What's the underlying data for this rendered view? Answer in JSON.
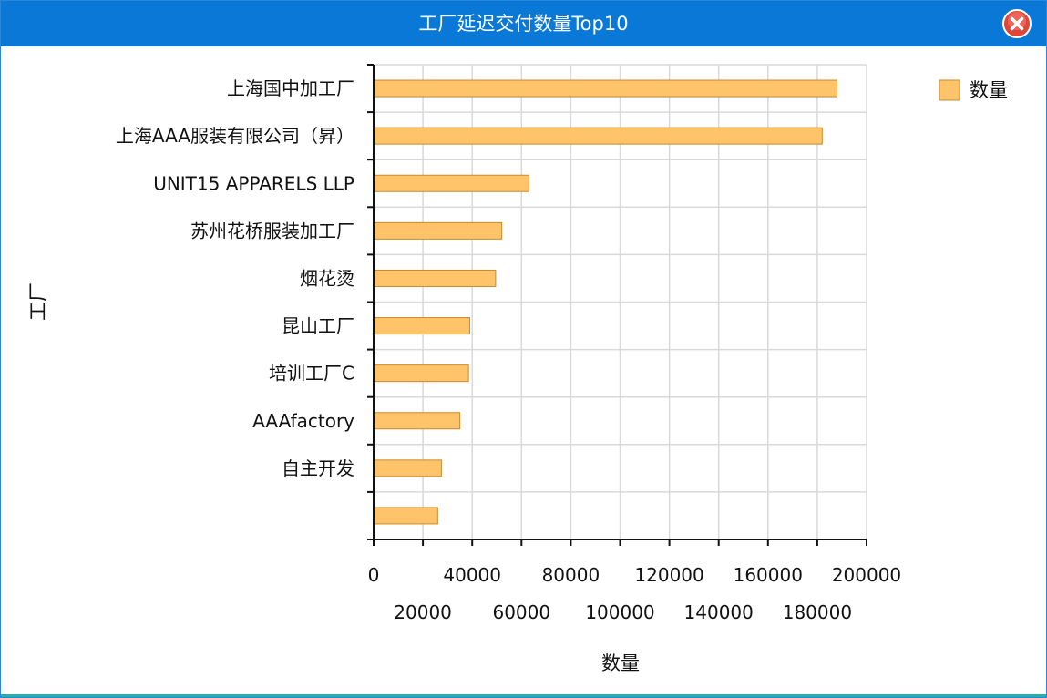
{
  "window": {
    "title": "工厂延迟交付数量Top10"
  },
  "icons": {
    "close": "close-icon"
  },
  "colors": {
    "titlebar": "#0a78d7",
    "bar_fill": "#ffc469",
    "bar_stroke": "#c98a2a",
    "grid": "#d9d9d9",
    "close_red": "#e0453a"
  },
  "chart_data": {
    "type": "bar",
    "orientation": "horizontal",
    "xlabel": "数量",
    "ylabel": "工厂",
    "xlim": [
      0,
      200000
    ],
    "x_ticks": [
      0,
      20000,
      40000,
      60000,
      80000,
      100000,
      120000,
      140000,
      160000,
      180000,
      200000
    ],
    "grid": true,
    "legend": {
      "position": "top-right",
      "entries": [
        "数量"
      ]
    },
    "categories": [
      "上海国中加工厂",
      "上海AAA服装有限公司（昇）",
      "UNIT15 APPARELS LLP",
      "苏州花桥服装加工厂",
      "烟花烫",
      "昆山工厂",
      "培训工厂C",
      "AAAfactory",
      "自主开发",
      ""
    ],
    "series": [
      {
        "name": "数量",
        "values": [
          188000,
          182000,
          63000,
          52000,
          49500,
          39000,
          38500,
          35000,
          27500,
          26000
        ]
      }
    ]
  }
}
